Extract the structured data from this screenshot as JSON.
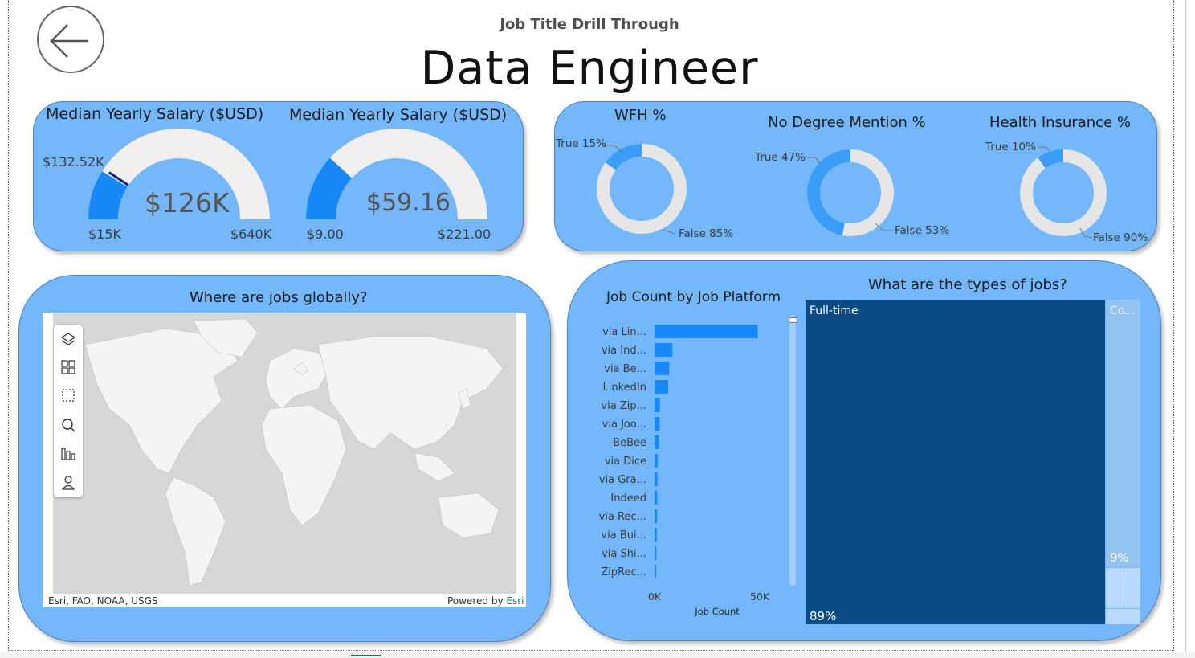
{
  "header": {
    "subtitle": "Job Title Drill Through",
    "title": "Data Engineer"
  },
  "gauges": [
    {
      "title": "Median Yearly Salary ($USD)",
      "value_label": "$126K",
      "min_label": "$15K",
      "max_label": "$640K",
      "target_label": "$132.52K",
      "min": 15000,
      "max": 640000,
      "value": 126000,
      "target": 132520,
      "fill_color": "#1888f8",
      "track_color": "#f1efef",
      "target_color": "#14208a"
    },
    {
      "title": "Median Yearly Salary ($USD)",
      "value_label": "$59.16",
      "min_label": "$9.00",
      "max_label": "$221.00",
      "min": 9,
      "max": 221,
      "value": 59.16,
      "fill_color": "#1888f8",
      "track_color": "#f1efef"
    }
  ],
  "donuts": [
    {
      "title": "WFH %",
      "true_label": "True 15%",
      "false_label": "False 85%",
      "true_pct": 15,
      "true_color": "#3a9df7",
      "false_color": "#e6e6e6"
    },
    {
      "title": "No Degree Mention %",
      "true_label": "True 47%",
      "false_label": "False 53%",
      "true_pct": 47,
      "true_color": "#3a9df7",
      "false_color": "#e6e6e6"
    },
    {
      "title": "Health Insurance %",
      "true_label": "True 10%",
      "false_label": "False 90%",
      "true_pct": 10,
      "true_color": "#3a9df7",
      "false_color": "#e6e6e6"
    }
  ],
  "map": {
    "title": "Where are jobs globally?",
    "attribution": "Esri, FAO, NOAA, USGS",
    "powered_by": "Powered by",
    "powered_by_brand": "Esri",
    "tools": [
      "layers-icon",
      "qr-select-icon",
      "rect-select-icon",
      "search-icon",
      "bar-chart-icon",
      "person-icon"
    ]
  },
  "platform_chart": {
    "title": "Job Count by Job Platform"
  },
  "treemap": {
    "title": "What are the types of jobs?",
    "big_label": "Full-time",
    "big_pct": "89%",
    "small_label": "Co...",
    "small_pct": "9%",
    "big_color": "#0a4a85",
    "small_color": "#93c3f0"
  },
  "chart_data": [
    {
      "type": "bar",
      "orientation": "horizontal",
      "title": "Job Count by Job Platform",
      "xlabel": "Job Count",
      "ylabel": "",
      "categories": [
        "via Lin...",
        "via Ind...",
        "via Be...",
        "LinkedIn",
        "via Zip...",
        "via Joo...",
        "BeBee",
        "via Dice",
        "via Gra...",
        "Indeed",
        "via Rec...",
        "via Bui...",
        "via Shi...",
        "ZipRec..."
      ],
      "values": [
        49000,
        8500,
        7000,
        6500,
        2600,
        2400,
        2100,
        1500,
        1400,
        1300,
        1200,
        1100,
        900,
        800
      ],
      "xlim": [
        0,
        60000
      ],
      "xticks": [
        "0K",
        "50K"
      ],
      "xtick_values": [
        0,
        50000
      ],
      "color": "#1888f8"
    }
  ]
}
